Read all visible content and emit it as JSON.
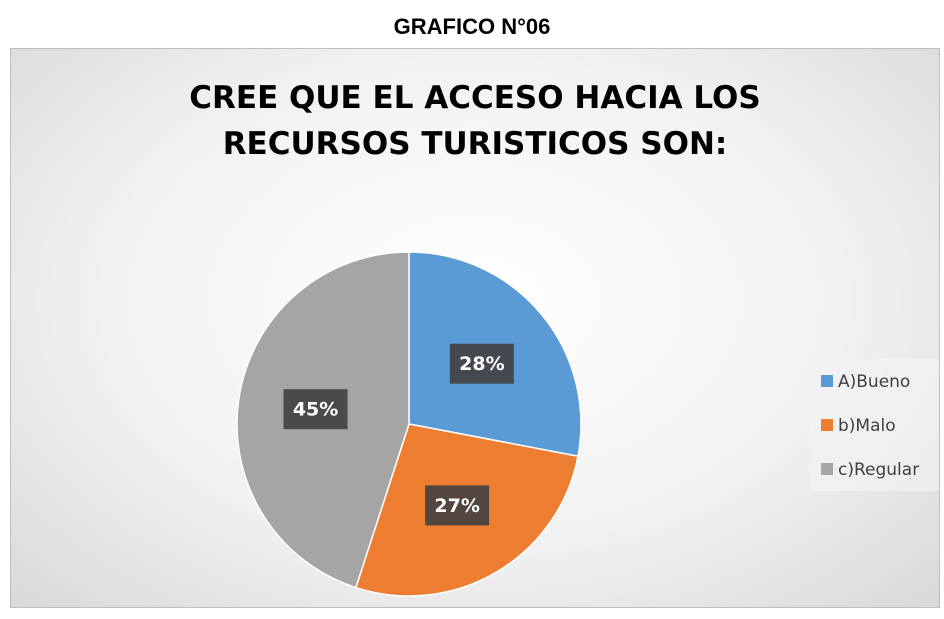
{
  "header": "GRAFICO N°06",
  "chart_data": {
    "type": "pie",
    "title": "CREE QUE EL ACCESO HACIA LOS RECURSOS TURISTICOS SON:",
    "categories": [
      "A)Bueno",
      "b)Malo",
      "c)Regular"
    ],
    "values": [
      28,
      27,
      45
    ],
    "value_labels": [
      "28%",
      "27%",
      "45%"
    ],
    "colors": [
      "#5b9bd5",
      "#ed7d31",
      "#a5a5a5"
    ],
    "legend": "right"
  }
}
